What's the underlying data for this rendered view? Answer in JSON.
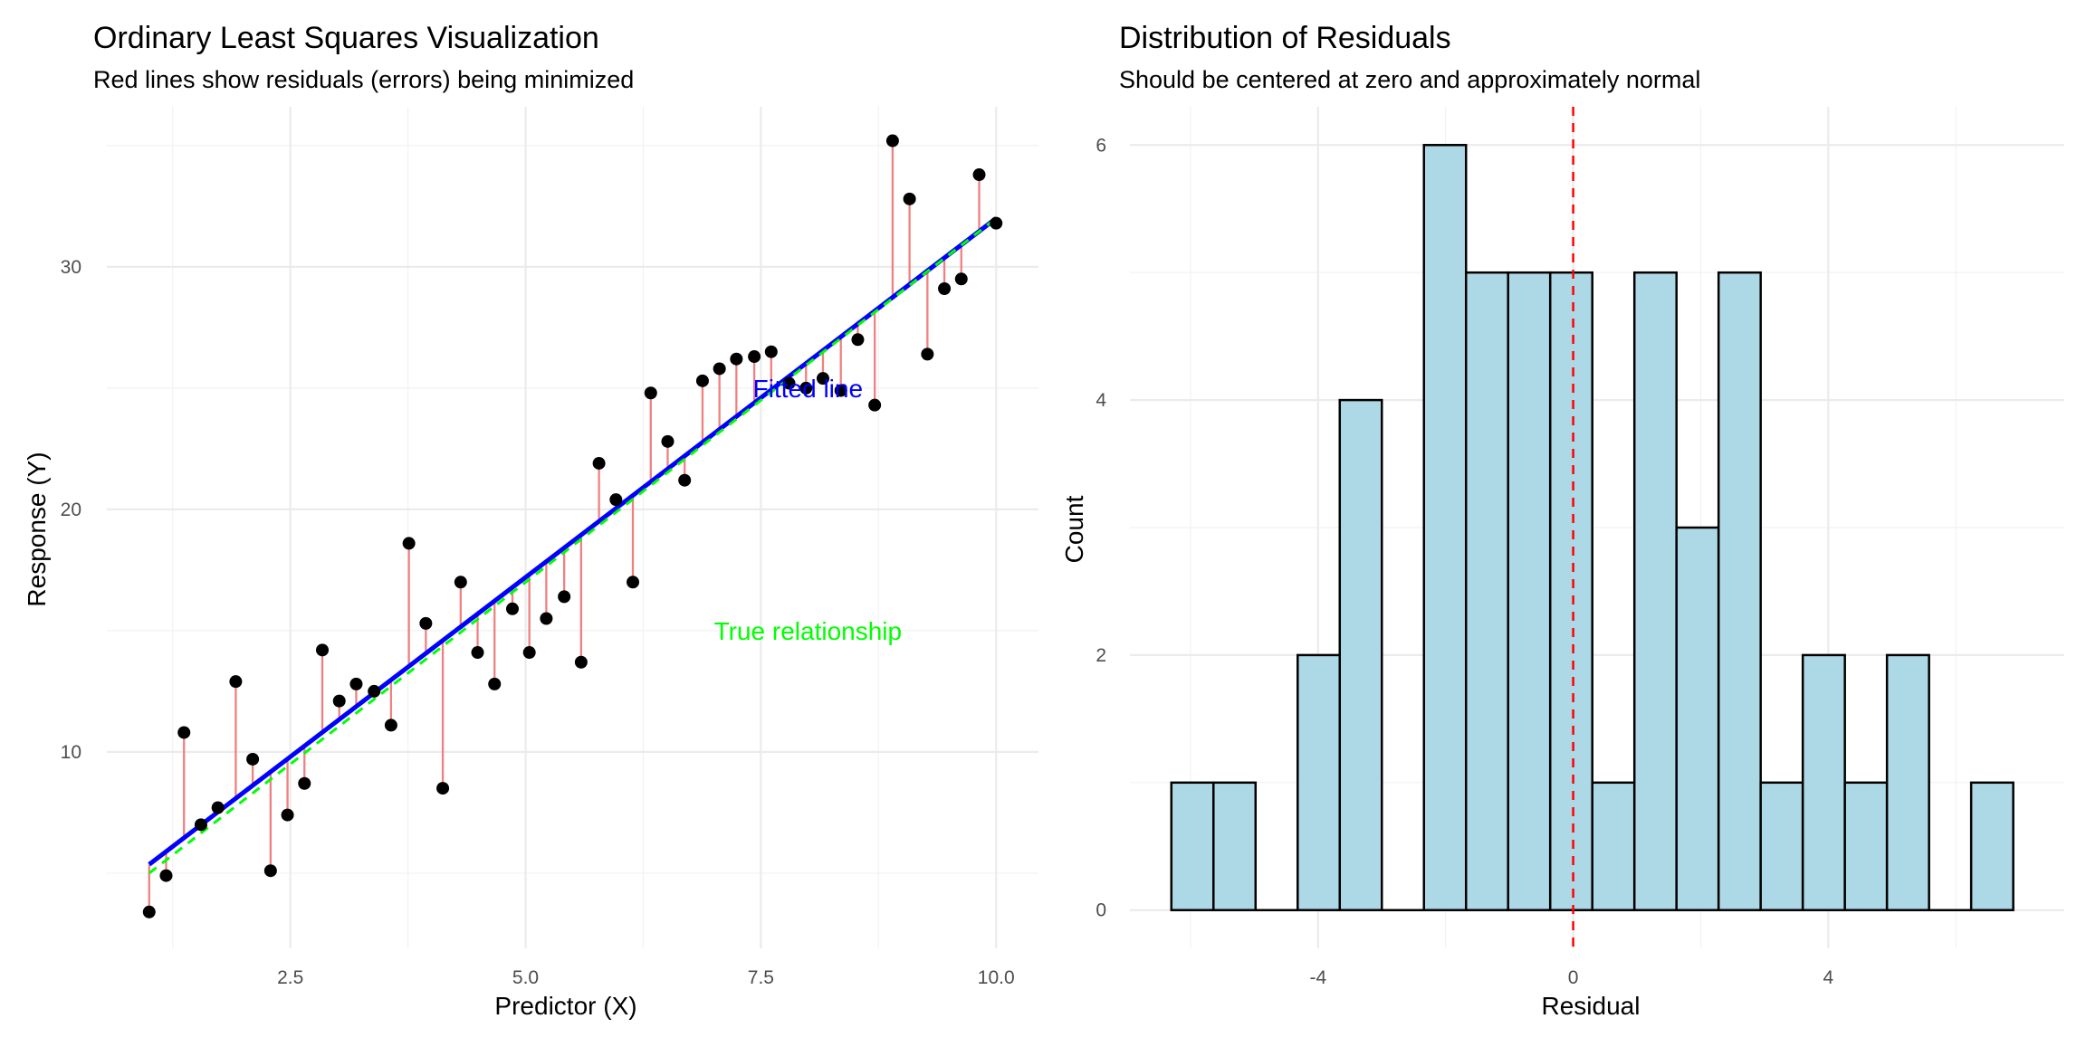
{
  "chart_data": [
    {
      "type": "scatter",
      "title": "Ordinary Least Squares Visualization",
      "subtitle": "Red lines show residuals (errors) being minimized",
      "xlabel": "Predictor (X)",
      "ylabel": "Response (Y)",
      "xlim": [
        0.55,
        10.45
      ],
      "ylim": [
        1.9,
        36.6
      ],
      "x_ticks": [
        2.5,
        5.0,
        7.5,
        10.0
      ],
      "x_tick_labels": [
        "2.5",
        "5.0",
        "7.5",
        "10.0"
      ],
      "y_ticks": [
        10,
        20,
        30
      ],
      "y_tick_labels": [
        "10",
        "20",
        "30"
      ],
      "grid": true,
      "fitted_line": {
        "label": "Fitted line",
        "intercept": 2.4,
        "slope": 2.96,
        "color": "#0000ff"
      },
      "true_line": {
        "label": "True relationship",
        "intercept": 2.0,
        "slope": 3.0,
        "color": "#00ff00",
        "dashed": true
      },
      "residual_color": "#f08080",
      "point_color": "#000000",
      "annotations": [
        {
          "text": "Fitted line",
          "x": 8.0,
          "y": 25.0,
          "color": "#0000ff"
        },
        {
          "text": "True relationship",
          "x": 8.0,
          "y": 15.0,
          "color": "#00ff00"
        }
      ],
      "points": [
        {
          "x": 1.0,
          "y": 3.4
        },
        {
          "x": 1.18,
          "y": 4.9
        },
        {
          "x": 1.37,
          "y": 10.8
        },
        {
          "x": 1.55,
          "y": 7.0
        },
        {
          "x": 1.73,
          "y": 7.7
        },
        {
          "x": 1.92,
          "y": 12.9
        },
        {
          "x": 2.1,
          "y": 9.7
        },
        {
          "x": 2.29,
          "y": 5.1
        },
        {
          "x": 2.47,
          "y": 7.4
        },
        {
          "x": 2.65,
          "y": 8.7
        },
        {
          "x": 2.84,
          "y": 14.2
        },
        {
          "x": 3.02,
          "y": 12.1
        },
        {
          "x": 3.2,
          "y": 12.8
        },
        {
          "x": 3.39,
          "y": 12.5
        },
        {
          "x": 3.57,
          "y": 11.1
        },
        {
          "x": 3.76,
          "y": 18.6
        },
        {
          "x": 3.94,
          "y": 15.3
        },
        {
          "x": 4.12,
          "y": 8.5
        },
        {
          "x": 4.31,
          "y": 17.0
        },
        {
          "x": 4.49,
          "y": 14.1
        },
        {
          "x": 4.67,
          "y": 12.8
        },
        {
          "x": 4.86,
          "y": 15.9
        },
        {
          "x": 5.04,
          "y": 14.1
        },
        {
          "x": 5.22,
          "y": 15.5
        },
        {
          "x": 5.41,
          "y": 16.4
        },
        {
          "x": 5.59,
          "y": 13.7
        },
        {
          "x": 5.78,
          "y": 21.9
        },
        {
          "x": 5.96,
          "y": 20.4
        },
        {
          "x": 6.14,
          "y": 17.0
        },
        {
          "x": 6.33,
          "y": 24.8
        },
        {
          "x": 6.51,
          "y": 22.8
        },
        {
          "x": 6.69,
          "y": 21.2
        },
        {
          "x": 6.88,
          "y": 25.3
        },
        {
          "x": 7.06,
          "y": 25.8
        },
        {
          "x": 7.24,
          "y": 26.2
        },
        {
          "x": 7.43,
          "y": 26.3
        },
        {
          "x": 7.61,
          "y": 26.5
        },
        {
          "x": 7.8,
          "y": 25.2
        },
        {
          "x": 7.98,
          "y": 25.0
        },
        {
          "x": 8.16,
          "y": 25.4
        },
        {
          "x": 8.35,
          "y": 24.9
        },
        {
          "x": 8.53,
          "y": 27.0
        },
        {
          "x": 8.71,
          "y": 24.3
        },
        {
          "x": 8.9,
          "y": 35.2
        },
        {
          "x": 9.08,
          "y": 32.8
        },
        {
          "x": 9.27,
          "y": 26.4
        },
        {
          "x": 9.45,
          "y": 29.1
        },
        {
          "x": 9.63,
          "y": 29.5
        },
        {
          "x": 9.82,
          "y": 33.8
        },
        {
          "x": 10.0,
          "y": 31.8
        }
      ]
    },
    {
      "type": "histogram",
      "title": "Distribution of Residuals",
      "subtitle": "Should be centered at zero and approximately normal",
      "xlabel": "Residual",
      "ylabel": "Count",
      "xlim": [
        -6.95,
        7.7
      ],
      "ylim": [
        -0.3,
        6.3
      ],
      "x_ticks": [
        -4,
        0,
        4
      ],
      "x_tick_labels": [
        "-4",
        "0",
        "4"
      ],
      "y_ticks": [
        0,
        2,
        4,
        6
      ],
      "y_tick_labels": [
        "0",
        "2",
        "4",
        "6"
      ],
      "grid": true,
      "bar_fill": "#add8e6",
      "bar_stroke": "#000000",
      "reference_line": {
        "x": 0,
        "color": "#ff0000",
        "dashed": true
      },
      "bin_width": 0.66,
      "bins": [
        {
          "x0": -6.3,
          "x1": -5.64,
          "count": 1
        },
        {
          "x0": -5.64,
          "x1": -4.98,
          "count": 1
        },
        {
          "x0": -4.98,
          "x1": -4.32,
          "count": 0
        },
        {
          "x0": -4.32,
          "x1": -3.66,
          "count": 2
        },
        {
          "x0": -3.66,
          "x1": -3.0,
          "count": 4
        },
        {
          "x0": -3.0,
          "x1": -2.34,
          "count": 0
        },
        {
          "x0": -2.34,
          "x1": -1.68,
          "count": 6
        },
        {
          "x0": -1.68,
          "x1": -1.02,
          "count": 5
        },
        {
          "x0": -1.02,
          "x1": -0.36,
          "count": 5
        },
        {
          "x0": -0.36,
          "x1": 0.3,
          "count": 5
        },
        {
          "x0": 0.3,
          "x1": 0.96,
          "count": 1
        },
        {
          "x0": 0.96,
          "x1": 1.62,
          "count": 5
        },
        {
          "x0": 1.62,
          "x1": 2.28,
          "count": 3
        },
        {
          "x0": 2.28,
          "x1": 2.94,
          "count": 5
        },
        {
          "x0": 2.94,
          "x1": 3.6,
          "count": 1
        },
        {
          "x0": 3.6,
          "x1": 4.26,
          "count": 2
        },
        {
          "x0": 4.26,
          "x1": 4.92,
          "count": 1
        },
        {
          "x0": 4.92,
          "x1": 5.58,
          "count": 2
        },
        {
          "x0": 5.58,
          "x1": 6.24,
          "count": 0
        },
        {
          "x0": 6.24,
          "x1": 6.9,
          "count": 1
        }
      ]
    }
  ]
}
